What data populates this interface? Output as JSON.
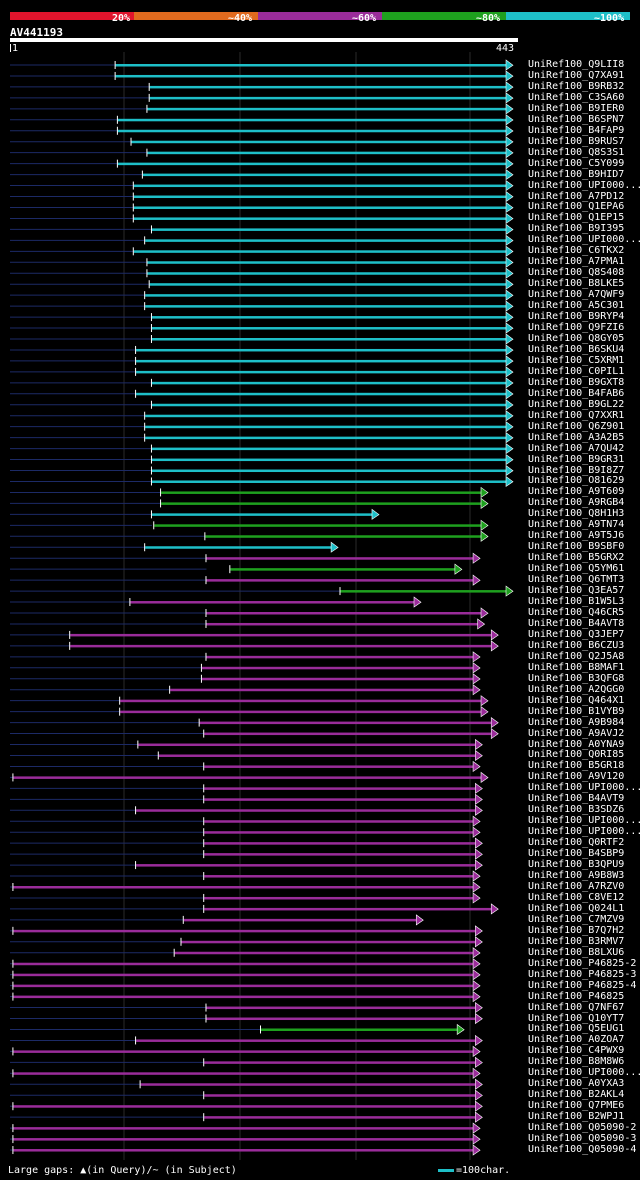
{
  "legend": {
    "segments": [
      {
        "label": "20%",
        "color": "#e0142c"
      },
      {
        "label": "~40%",
        "color": "#e06a1e"
      },
      {
        "label": "~60%",
        "color": "#9a2c9a"
      },
      {
        "label": "~80%",
        "color": "#1ea01e"
      },
      {
        "label": "~100%",
        "color": "#1ebfc8"
      }
    ]
  },
  "query": {
    "name": "AV441193",
    "start": "1",
    "end": "443"
  },
  "hits": [
    {
      "id": "UniRef100_Q9LII8",
      "from": 94,
      "to": 443,
      "cls": 4,
      "tail": 94
    },
    {
      "id": "UniRef100_Q7XA91",
      "from": 94,
      "to": 443,
      "cls": 4,
      "tail": 94
    },
    {
      "id": "UniRef100_B9RB32",
      "from": 124,
      "to": 443,
      "cls": 4,
      "tail": 124
    },
    {
      "id": "UniRef100_C3SA60",
      "from": 124,
      "to": 443,
      "cls": 4,
      "tail": 124
    },
    {
      "id": "UniRef100_B9IER0",
      "from": 122,
      "to": 443,
      "cls": 4,
      "tail": 122
    },
    {
      "id": "UniRef100_B6SPN7",
      "from": 96,
      "to": 443,
      "cls": 4,
      "tail": 96
    },
    {
      "id": "UniRef100_B4FAP9",
      "from": 96,
      "to": 443,
      "cls": 4,
      "tail": 96
    },
    {
      "id": "UniRef100_B9RUS7",
      "from": 108,
      "to": 443,
      "cls": 4,
      "tail": 108
    },
    {
      "id": "UniRef100_Q8S3S1",
      "from": 122,
      "to": 443,
      "cls": 4,
      "tail": 122
    },
    {
      "id": "UniRef100_C5Y099",
      "from": 96,
      "to": 443,
      "cls": 4,
      "tail": 96
    },
    {
      "id": "UniRef100_B9HID7",
      "from": 118,
      "to": 443,
      "cls": 4,
      "tail": 118
    },
    {
      "id": "UniRef100_UPI000...",
      "from": 110,
      "to": 443,
      "cls": 4,
      "tail": 110
    },
    {
      "id": "UniRef100_A7PD12",
      "from": 110,
      "to": 443,
      "cls": 4,
      "tail": 110
    },
    {
      "id": "UniRef100_Q1EPA6",
      "from": 110,
      "to": 443,
      "cls": 4,
      "tail": 110
    },
    {
      "id": "UniRef100_Q1EP15",
      "from": 110,
      "to": 443,
      "cls": 4,
      "tail": 110
    },
    {
      "id": "UniRef100_B9I395",
      "from": 126,
      "to": 443,
      "cls": 4,
      "tail": 126
    },
    {
      "id": "UniRef100_UPI000...",
      "from": 120,
      "to": 443,
      "cls": 4,
      "tail": 120
    },
    {
      "id": "UniRef100_C6TKX2",
      "from": 110,
      "to": 443,
      "cls": 4,
      "tail": 110
    },
    {
      "id": "UniRef100_A7PMA1",
      "from": 122,
      "to": 443,
      "cls": 4,
      "tail": 122
    },
    {
      "id": "UniRef100_Q8S408",
      "from": 122,
      "to": 443,
      "cls": 4,
      "tail": 122
    },
    {
      "id": "UniRef100_B8LKE5",
      "from": 124,
      "to": 443,
      "cls": 4,
      "tail": 124
    },
    {
      "id": "UniRef100_A7QWF9",
      "from": 120,
      "to": 443,
      "cls": 4,
      "tail": 120
    },
    {
      "id": "UniRef100_A5C301",
      "from": 120,
      "to": 443,
      "cls": 4,
      "tail": 120
    },
    {
      "id": "UniRef100_B9RYP4",
      "from": 126,
      "to": 443,
      "cls": 4,
      "tail": 126
    },
    {
      "id": "UniRef100_Q9FZI6",
      "from": 126,
      "to": 443,
      "cls": 4,
      "tail": 126
    },
    {
      "id": "UniRef100_Q8GY05",
      "from": 126,
      "to": 443,
      "cls": 4,
      "tail": 126
    },
    {
      "id": "UniRef100_B6SKU4",
      "from": 112,
      "to": 443,
      "cls": 4,
      "tail": 112
    },
    {
      "id": "UniRef100_C5XRM1",
      "from": 112,
      "to": 443,
      "cls": 4,
      "tail": 112
    },
    {
      "id": "UniRef100_C0PIL1",
      "from": 112,
      "to": 443,
      "cls": 4,
      "tail": 112
    },
    {
      "id": "UniRef100_B9GXT8",
      "from": 126,
      "to": 443,
      "cls": 4,
      "tail": 126
    },
    {
      "id": "UniRef100_B4FAB6",
      "from": 112,
      "to": 443,
      "cls": 4,
      "tail": 112
    },
    {
      "id": "UniRef100_B9GL22",
      "from": 126,
      "to": 443,
      "cls": 4,
      "tail": 126
    },
    {
      "id": "UniRef100_Q7XXR1",
      "from": 120,
      "to": 443,
      "cls": 4,
      "tail": 120
    },
    {
      "id": "UniRef100_Q6Z901",
      "from": 120,
      "to": 443,
      "cls": 4,
      "tail": 120
    },
    {
      "id": "UniRef100_A3A2B5",
      "from": 120,
      "to": 443,
      "cls": 4,
      "tail": 120
    },
    {
      "id": "UniRef100_A7QU42",
      "from": 126,
      "to": 443,
      "cls": 4,
      "tail": 126
    },
    {
      "id": "UniRef100_B9GR31",
      "from": 126,
      "to": 443,
      "cls": 4,
      "tail": 126
    },
    {
      "id": "UniRef100_B9I8Z7",
      "from": 126,
      "to": 443,
      "cls": 4,
      "tail": 126
    },
    {
      "id": "UniRef100_O81629",
      "from": 126,
      "to": 443,
      "cls": 4,
      "tail": 126
    },
    {
      "id": "UniRef100_A9T609",
      "from": 134,
      "to": 421,
      "cls": 3,
      "tail": 134
    },
    {
      "id": "UniRef100_A9RGB4",
      "from": 134,
      "to": 421,
      "cls": 3,
      "tail": 134
    },
    {
      "id": "UniRef100_Q8H1H3",
      "from": 126,
      "to": 325,
      "cls": 4,
      "tail": 126
    },
    {
      "id": "UniRef100_A9TN74",
      "from": 128,
      "to": 421,
      "cls": 3,
      "tail": 126
    },
    {
      "id": "UniRef100_A9T5J6",
      "from": 173,
      "to": 421,
      "cls": 3,
      "tail": 173
    },
    {
      "id": "UniRef100_B9SBF0",
      "from": 120,
      "to": 289,
      "cls": 4,
      "tail": 120
    },
    {
      "id": "UniRef100_B5GRX2",
      "from": 174,
      "to": 414,
      "cls": 2,
      "tail": 174
    },
    {
      "id": "UniRef100_Q5YM61",
      "from": 195,
      "to": 398,
      "cls": 3,
      "tail": 174
    },
    {
      "id": "UniRef100_Q6TMT3",
      "from": 174,
      "to": 414,
      "cls": 2,
      "tail": 174
    },
    {
      "id": "UniRef100_Q3EA57",
      "from": 292,
      "to": 443,
      "cls": 3,
      "tail": 292
    },
    {
      "id": "UniRef100_B1W5L3",
      "from": 107,
      "to": 362,
      "cls": 2,
      "tail": 107
    },
    {
      "id": "UniRef100_Q46CR5",
      "from": 174,
      "to": 421,
      "cls": 2,
      "tail": 174
    },
    {
      "id": "UniRef100_B4AVT8",
      "from": 174,
      "to": 418,
      "cls": 2,
      "tail": 174
    },
    {
      "id": "UniRef100_Q3JEP7",
      "from": 54,
      "to": 430,
      "cls": 2,
      "tail": 54
    },
    {
      "id": "UniRef100_B6CZU3",
      "from": 54,
      "to": 430,
      "cls": 2,
      "tail": 54
    },
    {
      "id": "UniRef100_Q2J5A8",
      "from": 174,
      "to": 414,
      "cls": 2,
      "tail": 174
    },
    {
      "id": "UniRef100_B8MAF1",
      "from": 170,
      "to": 414,
      "cls": 2,
      "tail": 170
    },
    {
      "id": "UniRef100_B3QFG8",
      "from": 170,
      "to": 414,
      "cls": 2,
      "tail": 170
    },
    {
      "id": "UniRef100_A2QGG0",
      "from": 142,
      "to": 414,
      "cls": 2,
      "tail": 142
    },
    {
      "id": "UniRef100_Q464X1",
      "from": 98,
      "to": 421,
      "cls": 2,
      "tail": 98
    },
    {
      "id": "UniRef100_B1VYB9",
      "from": 98,
      "to": 421,
      "cls": 2,
      "tail": 98
    },
    {
      "id": "UniRef100_A9B984",
      "from": 168,
      "to": 430,
      "cls": 2,
      "tail": 168
    },
    {
      "id": "UniRef100_A9AVJ2",
      "from": 172,
      "to": 430,
      "cls": 2,
      "tail": 172
    },
    {
      "id": "UniRef100_A0YNA9",
      "from": 114,
      "to": 416,
      "cls": 2,
      "tail": 114
    },
    {
      "id": "UniRef100_Q0RI85",
      "from": 132,
      "to": 416,
      "cls": 2,
      "tail": 132
    },
    {
      "id": "UniRef100_B5GR18",
      "from": 172,
      "to": 414,
      "cls": 2,
      "tail": 172
    },
    {
      "id": "UniRef100_A9V120",
      "from": 4,
      "to": 421,
      "cls": 2,
      "tail": 4
    },
    {
      "id": "UniRef100_UPI000...",
      "from": 172,
      "to": 416,
      "cls": 2,
      "tail": 172
    },
    {
      "id": "UniRef100_B4AVT9",
      "from": 172,
      "to": 416,
      "cls": 2,
      "tail": 172
    },
    {
      "id": "UniRef100_B3SDZ6",
      "from": 112,
      "to": 416,
      "cls": 2,
      "tail": 112
    },
    {
      "id": "UniRef100_UPI000...",
      "from": 172,
      "to": 414,
      "cls": 2,
      "tail": 172
    },
    {
      "id": "UniRef100_UPI000...",
      "from": 172,
      "to": 414,
      "cls": 2,
      "tail": 172
    },
    {
      "id": "UniRef100_Q0RTF2",
      "from": 172,
      "to": 416,
      "cls": 2,
      "tail": 172
    },
    {
      "id": "UniRef100_B4SBP9",
      "from": 172,
      "to": 416,
      "cls": 2,
      "tail": 172
    },
    {
      "id": "UniRef100_B3QPU9",
      "from": 112,
      "to": 416,
      "cls": 2,
      "tail": 112
    },
    {
      "id": "UniRef100_A9B8W3",
      "from": 172,
      "to": 414,
      "cls": 2,
      "tail": 172
    },
    {
      "id": "UniRef100_A7RZV0",
      "from": 4,
      "to": 414,
      "cls": 2,
      "tail": 4
    },
    {
      "id": "UniRef100_C8VE12",
      "from": 172,
      "to": 414,
      "cls": 2,
      "tail": 172
    },
    {
      "id": "UniRef100_Q024L1",
      "from": 172,
      "to": 430,
      "cls": 2,
      "tail": 172
    },
    {
      "id": "UniRef100_C7MZV9",
      "from": 154,
      "to": 364,
      "cls": 2,
      "tail": 154
    },
    {
      "id": "UniRef100_B7Q7H2",
      "from": 4,
      "to": 416,
      "cls": 2,
      "tail": 4
    },
    {
      "id": "UniRef100_B3RMV7",
      "from": 152,
      "to": 416,
      "cls": 2,
      "tail": 152
    },
    {
      "id": "UniRef100_B8LXU6",
      "from": 146,
      "to": 414,
      "cls": 2,
      "tail": 146
    },
    {
      "id": "UniRef100_P46825-2",
      "from": 4,
      "to": 414,
      "cls": 2,
      "tail": 4
    },
    {
      "id": "UniRef100_P46825-3",
      "from": 4,
      "to": 414,
      "cls": 2,
      "tail": 4
    },
    {
      "id": "UniRef100_P46825-4",
      "from": 4,
      "to": 414,
      "cls": 2,
      "tail": 4
    },
    {
      "id": "UniRef100_P46825",
      "from": 4,
      "to": 414,
      "cls": 2,
      "tail": 4
    },
    {
      "id": "UniRef100_Q7NF67",
      "from": 174,
      "to": 416,
      "cls": 2,
      "tail": 174
    },
    {
      "id": "UniRef100_Q10YT7",
      "from": 174,
      "to": 416,
      "cls": 2,
      "tail": 174
    },
    {
      "id": "UniRef100_Q5EUG1",
      "from": 222,
      "to": 400,
      "cls": 3,
      "tail": 222
    },
    {
      "id": "UniRef100_A0ZOA7",
      "from": 112,
      "to": 416,
      "cls": 2,
      "tail": 112
    },
    {
      "id": "UniRef100_C4PWX9",
      "from": 4,
      "to": 414,
      "cls": 2,
      "tail": 4
    },
    {
      "id": "UniRef100_B8M8W6",
      "from": 172,
      "to": 416,
      "cls": 2,
      "tail": 172
    },
    {
      "id": "UniRef100_UPI000...",
      "from": 4,
      "to": 414,
      "cls": 2,
      "tail": 4
    },
    {
      "id": "UniRef100_A0YXA3",
      "from": 116,
      "to": 416,
      "cls": 2,
      "tail": 116
    },
    {
      "id": "UniRef100_B2AKL4",
      "from": 172,
      "to": 416,
      "cls": 2,
      "tail": 172
    },
    {
      "id": "UniRef100_Q7PME6",
      "from": 4,
      "to": 416,
      "cls": 2,
      "tail": 4
    },
    {
      "id": "UniRef100_B2WPJ1",
      "from": 172,
      "to": 416,
      "cls": 2,
      "tail": 172
    },
    {
      "id": "UniRef100_Q05090-2",
      "from": 4,
      "to": 414,
      "cls": 2,
      "tail": 4
    },
    {
      "id": "UniRef100_Q05090-3",
      "from": 4,
      "to": 414,
      "cls": 2,
      "tail": 4
    },
    {
      "id": "UniRef100_Q05090-4",
      "from": 4,
      "to": 414,
      "cls": 2,
      "tail": 4
    }
  ],
  "footer": {
    "gaps_text": "Large gaps: ▲(in Query)/~ (in Subject)",
    "scale_text": "=100char."
  }
}
